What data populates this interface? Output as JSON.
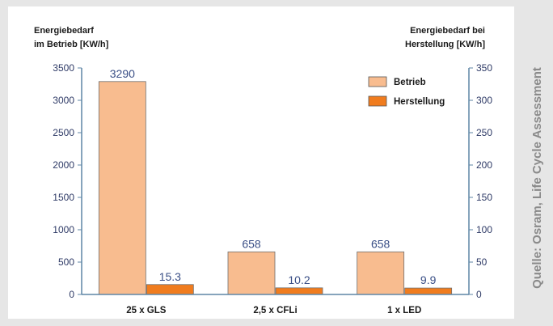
{
  "chart_data": {
    "type": "bar",
    "categories": [
      "25 x GLS",
      "2,5 x CFLi",
      "1 x LED"
    ],
    "series": [
      {
        "name": "Betrieb",
        "axis": "left",
        "color": "#f8bc8f",
        "values": [
          3290,
          658,
          658
        ],
        "labels": [
          "3290",
          "658",
          "658"
        ]
      },
      {
        "name": "Herstellung",
        "axis": "right",
        "color": "#f07c1e",
        "values": [
          15.3,
          10.2,
          9.9
        ],
        "labels": [
          "15.3",
          "10.2",
          "9.9"
        ]
      }
    ],
    "y_left": {
      "title_lines": [
        "Energiebedarf",
        "im Betrieb [KW/h]"
      ],
      "ylim": [
        0,
        3500
      ],
      "ticks": [
        "0",
        "500",
        "1000",
        "1500",
        "2000",
        "2500",
        "3000",
        "3500"
      ]
    },
    "y_right": {
      "title_lines": [
        "Energiebedarf bei",
        "Herstellung [KW/h]"
      ],
      "ylim": [
        0,
        350
      ],
      "ticks": [
        "0",
        "50",
        "100",
        "150",
        "200",
        "250",
        "300",
        "350"
      ]
    },
    "grid": false,
    "legend_position": "top-right",
    "axis_color": "#5f86a6"
  },
  "source_note": "Quelle: Osram, Life Cycle Assessment"
}
